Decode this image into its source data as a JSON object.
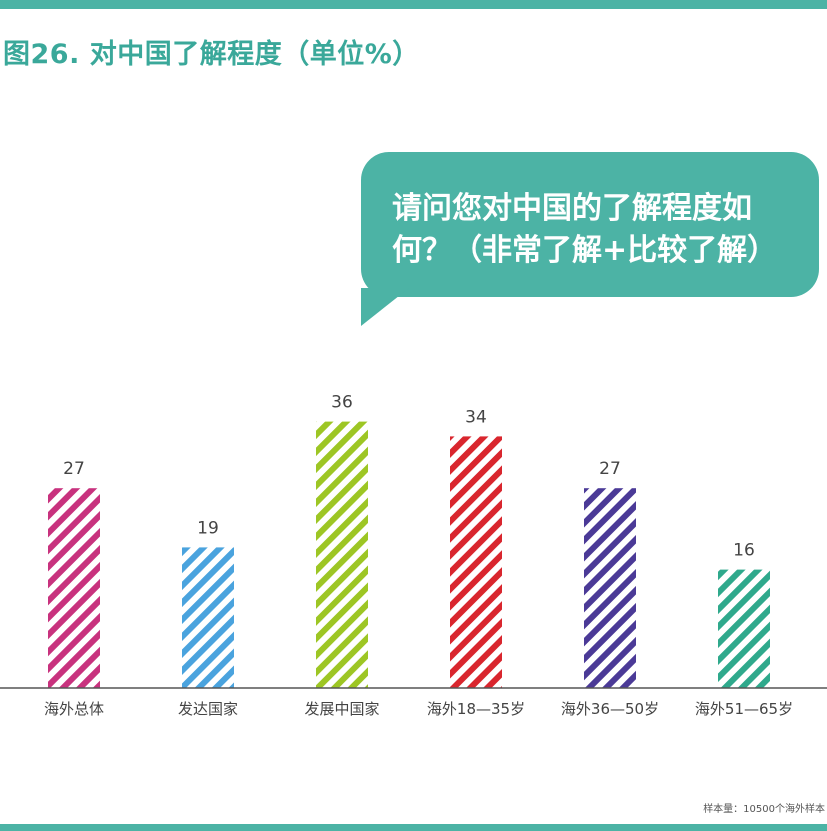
{
  "colors": {
    "accent": "#4cb3a5",
    "title": "#3aa89a",
    "axis": "#555555",
    "bar_stripe_bg": "#ffffff"
  },
  "title": "图26. 对中国了解程度（单位%）",
  "bubble": {
    "text": "请问您对中国的了解程度如何？（非常了解+比较了解）"
  },
  "chart_data": {
    "type": "bar",
    "categories": [
      "海外总体",
      "发达国家",
      "发展中国家",
      "海外18—35岁",
      "海外36—50岁",
      "海外51—65岁"
    ],
    "values": [
      27,
      19,
      36,
      34,
      27,
      16
    ],
    "bar_colors": [
      "#c8327e",
      "#4aa3de",
      "#9dc624",
      "#d9262e",
      "#4b3a97",
      "#2fa98c"
    ],
    "pattern": "diagonal-stripes",
    "ylim": [
      0,
      40
    ],
    "grid": false,
    "data_labels": true
  },
  "footnote": "样本量：10500个海外样本"
}
